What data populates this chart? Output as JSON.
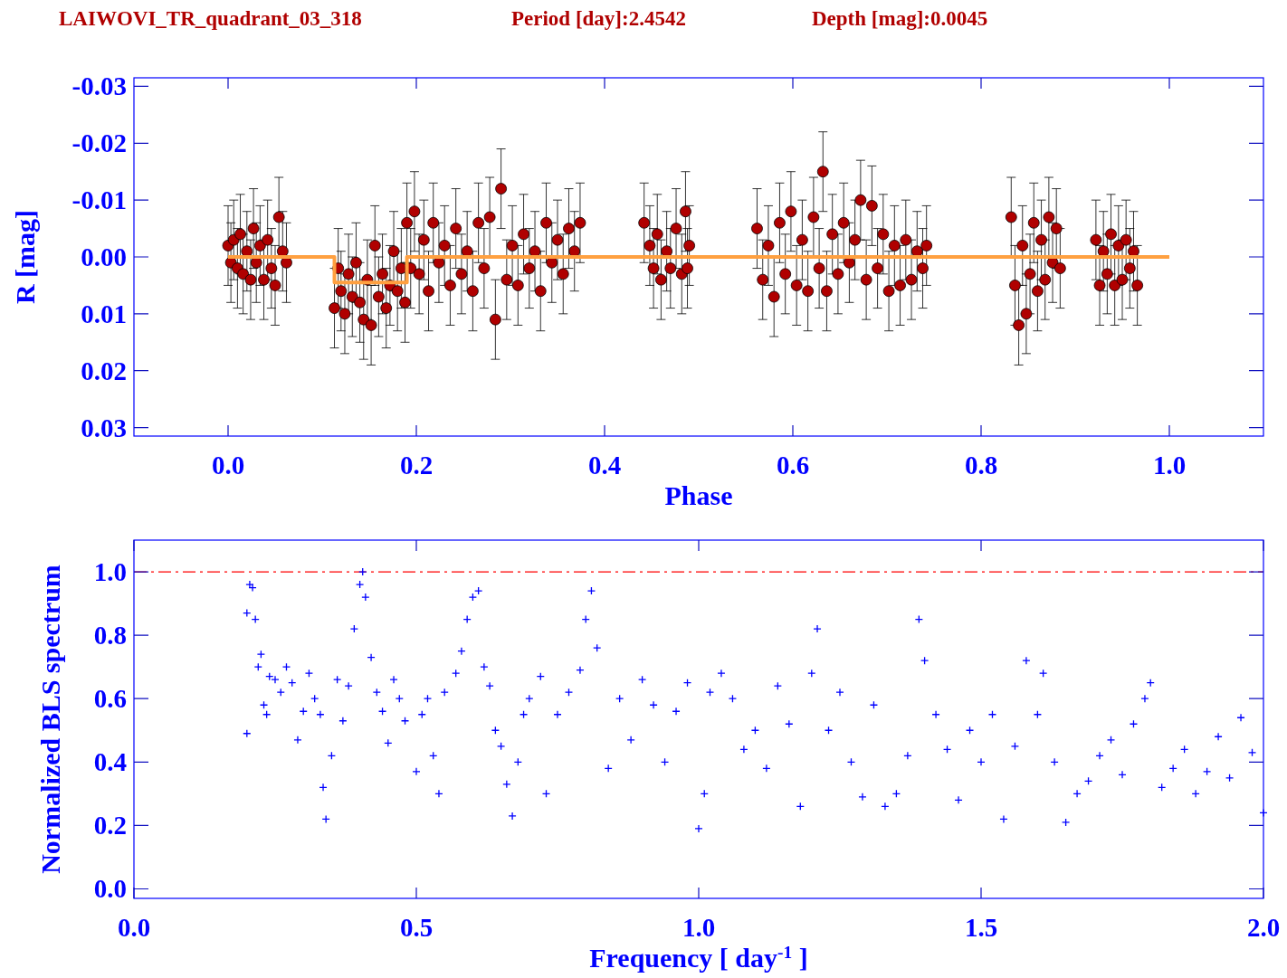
{
  "chart_data": [
    {
      "type": "scatter",
      "title": "LAIWOVI_TR_quadrant_03_318",
      "annotations": [
        "Period [day]:2.4542",
        "Depth [mag]:0.0045"
      ],
      "xlabel": "Phase",
      "ylabel": "R [mag]",
      "xlim": [
        -0.1,
        1.1
      ],
      "xticks": [
        {
          "value": 0,
          "label": "0.0"
        },
        {
          "value": 0.2,
          "label": "0.2"
        },
        {
          "value": 0.4,
          "label": "0.4"
        },
        {
          "value": 0.6,
          "label": "0.6"
        },
        {
          "value": 0.8,
          "label": "0.8"
        },
        {
          "value": 1,
          "label": "1.0"
        }
      ],
      "ylim": [
        0.0315,
        -0.0315
      ],
      "yticks": [
        {
          "value": -0.03,
          "label": "-0.03"
        },
        {
          "value": -0.02,
          "label": "-0.02"
        },
        {
          "value": -0.01,
          "label": "-0.01"
        },
        {
          "value": 0,
          "label": "0.00"
        },
        {
          "value": 0.01,
          "label": "0.01"
        },
        {
          "value": 0.02,
          "label": "0.02"
        },
        {
          "value": 0.03,
          "label": "0.03"
        }
      ],
      "series": [
        {
          "color": "#b00000",
          "marker": "circle",
          "x": [
            0.0,
            0.003,
            0.006,
            0.01,
            0.013,
            0.016,
            0.02,
            0.024,
            0.027,
            0.03,
            0.034,
            0.038,
            0.042,
            0.046,
            0.05,
            0.054,
            0.058,
            0.062,
            0.113,
            0.117,
            0.12,
            0.124,
            0.128,
            0.132,
            0.136,
            0.14,
            0.144,
            0.148,
            0.152,
            0.156,
            0.16,
            0.164,
            0.168,
            0.172,
            0.176,
            0.18,
            0.184,
            0.188,
            0.19,
            0.194,
            0.198,
            0.203,
            0.208,
            0.213,
            0.218,
            0.224,
            0.23,
            0.236,
            0.242,
            0.248,
            0.254,
            0.26,
            0.266,
            0.272,
            0.278,
            0.284,
            0.29,
            0.296,
            0.302,
            0.308,
            0.314,
            0.32,
            0.326,
            0.332,
            0.338,
            0.344,
            0.35,
            0.356,
            0.362,
            0.368,
            0.374,
            0.442,
            0.448,
            0.452,
            0.456,
            0.46,
            0.466,
            0.47,
            0.476,
            0.482,
            0.486,
            0.49,
            0.488,
            0.562,
            0.568,
            0.574,
            0.58,
            0.586,
            0.592,
            0.598,
            0.604,
            0.61,
            0.616,
            0.622,
            0.628,
            0.632,
            0.636,
            0.642,
            0.648,
            0.654,
            0.66,
            0.666,
            0.672,
            0.678,
            0.684,
            0.69,
            0.696,
            0.702,
            0.708,
            0.714,
            0.72,
            0.726,
            0.732,
            0.738,
            0.742,
            0.832,
            0.836,
            0.84,
            0.844,
            0.848,
            0.852,
            0.856,
            0.86,
            0.864,
            0.868,
            0.872,
            0.876,
            0.88,
            0.884,
            0.922,
            0.926,
            0.93,
            0.934,
            0.938,
            0.942,
            0.946,
            0.95,
            0.954,
            0.958,
            0.962,
            0.966
          ],
          "values": [
            -0.002,
            0.001,
            -0.003,
            0.002,
            -0.004,
            0.003,
            -0.001,
            0.004,
            -0.005,
            0.001,
            -0.002,
            0.004,
            -0.003,
            0.002,
            0.005,
            -0.007,
            -0.001,
            0.001,
            0.009,
            0.002,
            0.006,
            0.01,
            0.003,
            0.007,
            0.001,
            0.008,
            0.011,
            0.004,
            0.012,
            -0.002,
            0.007,
            0.003,
            0.009,
            0.005,
            -0.001,
            0.006,
            0.002,
            0.008,
            -0.006,
            0.002,
            -0.008,
            0.003,
            -0.003,
            0.006,
            -0.006,
            0.001,
            -0.002,
            0.005,
            -0.005,
            0.003,
            -0.001,
            0.006,
            -0.006,
            0.002,
            -0.007,
            0.011,
            -0.012,
            0.004,
            -0.002,
            0.005,
            -0.004,
            0.002,
            -0.001,
            0.006,
            -0.006,
            0.001,
            -0.003,
            0.003,
            -0.005,
            -0.001,
            -0.006,
            -0.006,
            -0.002,
            0.002,
            -0.004,
            0.004,
            -0.001,
            0.002,
            -0.005,
            0.003,
            -0.008,
            -0.002,
            0.002,
            -0.005,
            0.004,
            -0.002,
            0.007,
            -0.006,
            0.003,
            -0.008,
            0.005,
            -0.003,
            0.006,
            -0.007,
            0.002,
            -0.015,
            0.006,
            -0.004,
            0.003,
            -0.006,
            0.001,
            -0.003,
            -0.01,
            0.004,
            -0.009,
            0.002,
            -0.004,
            0.006,
            -0.002,
            0.005,
            -0.003,
            0.004,
            -0.001,
            0.002,
            -0.002,
            -0.007,
            0.005,
            0.012,
            -0.002,
            0.01,
            0.003,
            -0.006,
            0.006,
            -0.003,
            0.004,
            -0.007,
            0.001,
            -0.005,
            0.002,
            -0.003,
            0.005,
            -0.001,
            0.003,
            -0.004,
            0.005,
            -0.002,
            0.004,
            -0.003,
            0.002,
            -0.001,
            0.005
          ],
          "errors": [
            0.007,
            0.007,
            0.007,
            0.007,
            0.007,
            0.007,
            0.007,
            0.007,
            0.007,
            0.007,
            0.007,
            0.007,
            0.007,
            0.007,
            0.007,
            0.007,
            0.007,
            0.007,
            0.007,
            0.007,
            0.007,
            0.007,
            0.007,
            0.007,
            0.007,
            0.007,
            0.007,
            0.007,
            0.007,
            0.007,
            0.007,
            0.007,
            0.007,
            0.007,
            0.007,
            0.007,
            0.007,
            0.007,
            0.007,
            0.007,
            0.007,
            0.007,
            0.007,
            0.007,
            0.007,
            0.007,
            0.007,
            0.007,
            0.007,
            0.007,
            0.007,
            0.007,
            0.007,
            0.007,
            0.007,
            0.007,
            0.007,
            0.007,
            0.007,
            0.007,
            0.007,
            0.007,
            0.007,
            0.007,
            0.007,
            0.007,
            0.007,
            0.007,
            0.007,
            0.007,
            0.007,
            0.007,
            0.007,
            0.007,
            0.007,
            0.007,
            0.007,
            0.007,
            0.007,
            0.007,
            0.007,
            0.007,
            0.007,
            0.007,
            0.007,
            0.007,
            0.007,
            0.007,
            0.007,
            0.007,
            0.007,
            0.007,
            0.007,
            0.007,
            0.007,
            0.007,
            0.007,
            0.007,
            0.007,
            0.007,
            0.007,
            0.007,
            0.007,
            0.007,
            0.007,
            0.007,
            0.007,
            0.007,
            0.007,
            0.007,
            0.007,
            0.007,
            0.007,
            0.007,
            0.007,
            0.007,
            0.007,
            0.007,
            0.007,
            0.007,
            0.007,
            0.007,
            0.007,
            0.007,
            0.007,
            0.007,
            0.007,
            0.007,
            0.007,
            0.007,
            0.007,
            0.007,
            0.007,
            0.007,
            0.007,
            0.007,
            0.007,
            0.007,
            0.007,
            0.007,
            0.007
          ]
        },
        {
          "type": "line",
          "color": "#ffa040",
          "line_style": "solid",
          "x": [
            0,
            0.113,
            0.113,
            0.19,
            0.19,
            1.0
          ],
          "values": [
            0,
            0,
            0.0045,
            0.0045,
            0,
            0
          ]
        }
      ]
    },
    {
      "type": "scatter",
      "xlabel": "Frequency [ day$^{-1}$ ]",
      "ylabel": "Normalized BLS spectrum",
      "xlim": [
        0,
        2
      ],
      "xticks": [
        {
          "value": 0,
          "label": "0.0"
        },
        {
          "value": 0.5,
          "label": "0.5"
        },
        {
          "value": 1,
          "label": "1.0"
        },
        {
          "value": 1.5,
          "label": "1.5"
        },
        {
          "value": 2,
          "label": "2.0"
        }
      ],
      "ylim": [
        -0.03,
        1.1
      ],
      "yticks": [
        {
          "value": 0,
          "label": "0.0"
        },
        {
          "value": 0.2,
          "label": "0.2"
        },
        {
          "value": 0.4,
          "label": "0.4"
        },
        {
          "value": 0.6,
          "label": "0.6"
        },
        {
          "value": 0.8,
          "label": "0.8"
        },
        {
          "value": 1,
          "label": "1.0"
        }
      ],
      "ref_lines": [
        {
          "axis": "y",
          "value": 1.0,
          "color": "#ff0000",
          "line_style": "dashed"
        }
      ],
      "series": [
        {
          "color": "#0000ff",
          "marker": "cross",
          "x": [
            0.2,
            0.205,
            0.21,
            0.215,
            0.2,
            0.22,
            0.225,
            0.23,
            0.235,
            0.24,
            0.25,
            0.26,
            0.27,
            0.28,
            0.29,
            0.3,
            0.31,
            0.32,
            0.33,
            0.335,
            0.34,
            0.35,
            0.36,
            0.37,
            0.38,
            0.39,
            0.4,
            0.405,
            0.41,
            0.42,
            0.43,
            0.44,
            0.45,
            0.46,
            0.47,
            0.48,
            0.5,
            0.51,
            0.52,
            0.53,
            0.54,
            0.55,
            0.57,
            0.58,
            0.59,
            0.6,
            0.61,
            0.62,
            0.63,
            0.64,
            0.65,
            0.66,
            0.67,
            0.68,
            0.69,
            0.7,
            0.72,
            0.73,
            0.75,
            0.77,
            0.79,
            0.8,
            0.81,
            0.82,
            0.84,
            0.86,
            0.88,
            0.9,
            0.92,
            0.94,
            0.96,
            0.98,
            1.0,
            1.01,
            1.02,
            1.04,
            1.06,
            1.08,
            1.1,
            1.12,
            1.14,
            1.16,
            1.18,
            1.2,
            1.21,
            1.23,
            1.25,
            1.27,
            1.29,
            1.31,
            1.33,
            1.35,
            1.37,
            1.39,
            1.4,
            1.42,
            1.44,
            1.46,
            1.48,
            1.5,
            1.52,
            1.54,
            1.56,
            1.58,
            1.6,
            1.61,
            1.63,
            1.65,
            1.67,
            1.69,
            1.71,
            1.73,
            1.75,
            1.77,
            1.79,
            1.8,
            1.82,
            1.84,
            1.86,
            1.88,
            1.9,
            1.92,
            1.94,
            1.96,
            1.98,
            2.0
          ],
          "values": [
            0.87,
            0.96,
            0.95,
            0.85,
            0.49,
            0.7,
            0.74,
            0.58,
            0.55,
            0.67,
            0.66,
            0.62,
            0.7,
            0.65,
            0.47,
            0.56,
            0.68,
            0.6,
            0.55,
            0.32,
            0.22,
            0.42,
            0.66,
            0.53,
            0.64,
            0.82,
            0.96,
            1.0,
            0.92,
            0.73,
            0.62,
            0.56,
            0.46,
            0.66,
            0.6,
            0.53,
            0.37,
            0.55,
            0.6,
            0.42,
            0.3,
            0.62,
            0.68,
            0.75,
            0.85,
            0.92,
            0.94,
            0.7,
            0.64,
            0.5,
            0.45,
            0.33,
            0.23,
            0.4,
            0.55,
            0.6,
            0.67,
            0.3,
            0.55,
            0.62,
            0.69,
            0.85,
            0.94,
            0.76,
            0.38,
            0.6,
            0.47,
            0.66,
            0.58,
            0.4,
            0.56,
            0.65,
            0.19,
            0.3,
            0.62,
            0.68,
            0.6,
            0.44,
            0.5,
            0.38,
            0.64,
            0.52,
            0.26,
            0.68,
            0.82,
            0.5,
            0.62,
            0.4,
            0.29,
            0.58,
            0.26,
            0.3,
            0.42,
            0.85,
            0.72,
            0.55,
            0.44,
            0.28,
            0.5,
            0.4,
            0.55,
            0.22,
            0.45,
            0.72,
            0.55,
            0.68,
            0.4,
            0.21,
            0.3,
            0.34,
            0.42,
            0.47,
            0.36,
            0.52,
            0.6,
            0.65,
            0.32,
            0.38,
            0.44,
            0.3,
            0.37,
            0.48,
            0.35,
            0.54,
            0.43,
            0.24
          ]
        }
      ]
    }
  ]
}
